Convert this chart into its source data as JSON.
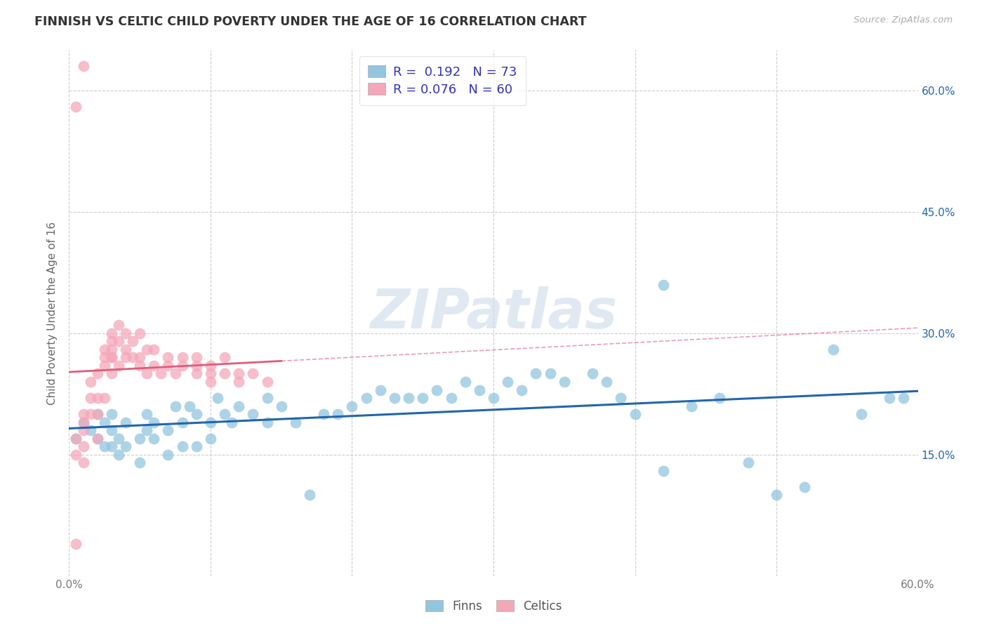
{
  "title": "FINNISH VS CELTIC CHILD POVERTY UNDER THE AGE OF 16 CORRELATION CHART",
  "source": "Source: ZipAtlas.com",
  "ylabel": "Child Poverty Under the Age of 16",
  "xlim": [
    0.0,
    0.6
  ],
  "ylim": [
    0.0,
    0.65
  ],
  "yticks": [
    0.15,
    0.3,
    0.45,
    0.6
  ],
  "xticks": [
    0.0,
    0.1,
    0.2,
    0.3,
    0.4,
    0.5,
    0.6
  ],
  "finn_color": "#92c5de",
  "celt_color": "#f4a7b9",
  "finn_line_color": "#2166ac",
  "celt_line_color": "#e05c7a",
  "grid_color": "#cccccc",
  "title_color": "#333333",
  "axis_label_color": "#666666",
  "tick_color": "#777777",
  "right_tick_color": "#2166ac",
  "legend_text_color": "#3333bb",
  "watermark_text": "ZIPatlas",
  "finns_x": [
    0.005,
    0.01,
    0.015,
    0.02,
    0.02,
    0.025,
    0.025,
    0.03,
    0.03,
    0.03,
    0.035,
    0.035,
    0.04,
    0.04,
    0.05,
    0.05,
    0.055,
    0.055,
    0.06,
    0.06,
    0.07,
    0.07,
    0.075,
    0.08,
    0.08,
    0.085,
    0.09,
    0.09,
    0.1,
    0.1,
    0.105,
    0.11,
    0.115,
    0.12,
    0.13,
    0.14,
    0.14,
    0.15,
    0.16,
    0.17,
    0.18,
    0.19,
    0.2,
    0.21,
    0.22,
    0.23,
    0.24,
    0.25,
    0.26,
    0.27,
    0.28,
    0.29,
    0.3,
    0.31,
    0.32,
    0.33,
    0.34,
    0.35,
    0.37,
    0.38,
    0.39,
    0.4,
    0.42,
    0.44,
    0.46,
    0.48,
    0.5,
    0.52,
    0.54,
    0.56,
    0.42,
    0.58,
    0.59
  ],
  "finns_y": [
    0.17,
    0.19,
    0.18,
    0.17,
    0.2,
    0.16,
    0.19,
    0.16,
    0.18,
    0.2,
    0.15,
    0.17,
    0.16,
    0.19,
    0.14,
    0.17,
    0.18,
    0.2,
    0.17,
    0.19,
    0.15,
    0.18,
    0.21,
    0.16,
    0.19,
    0.21,
    0.16,
    0.2,
    0.17,
    0.19,
    0.22,
    0.2,
    0.19,
    0.21,
    0.2,
    0.19,
    0.22,
    0.21,
    0.19,
    0.1,
    0.2,
    0.2,
    0.21,
    0.22,
    0.23,
    0.22,
    0.22,
    0.22,
    0.23,
    0.22,
    0.24,
    0.23,
    0.22,
    0.24,
    0.23,
    0.25,
    0.25,
    0.24,
    0.25,
    0.24,
    0.22,
    0.2,
    0.13,
    0.21,
    0.22,
    0.14,
    0.1,
    0.11,
    0.28,
    0.2,
    0.36,
    0.22,
    0.22
  ],
  "celts_x": [
    0.005,
    0.005,
    0.005,
    0.01,
    0.01,
    0.01,
    0.01,
    0.01,
    0.015,
    0.015,
    0.015,
    0.02,
    0.02,
    0.02,
    0.02,
    0.025,
    0.025,
    0.025,
    0.025,
    0.03,
    0.03,
    0.03,
    0.03,
    0.03,
    0.03,
    0.035,
    0.035,
    0.035,
    0.04,
    0.04,
    0.04,
    0.045,
    0.045,
    0.05,
    0.05,
    0.05,
    0.055,
    0.055,
    0.06,
    0.06,
    0.065,
    0.07,
    0.07,
    0.075,
    0.08,
    0.08,
    0.09,
    0.09,
    0.09,
    0.1,
    0.1,
    0.1,
    0.11,
    0.11,
    0.12,
    0.12,
    0.13,
    0.14,
    0.005,
    0.01
  ],
  "celts_y": [
    0.17,
    0.15,
    0.04,
    0.18,
    0.19,
    0.2,
    0.14,
    0.16,
    0.22,
    0.2,
    0.24,
    0.25,
    0.22,
    0.2,
    0.17,
    0.27,
    0.28,
    0.26,
    0.22,
    0.27,
    0.29,
    0.27,
    0.3,
    0.28,
    0.25,
    0.31,
    0.29,
    0.26,
    0.28,
    0.3,
    0.27,
    0.29,
    0.27,
    0.27,
    0.3,
    0.26,
    0.28,
    0.25,
    0.28,
    0.26,
    0.25,
    0.27,
    0.26,
    0.25,
    0.27,
    0.26,
    0.27,
    0.25,
    0.26,
    0.25,
    0.24,
    0.26,
    0.25,
    0.27,
    0.25,
    0.24,
    0.25,
    0.24,
    0.58,
    0.63
  ]
}
